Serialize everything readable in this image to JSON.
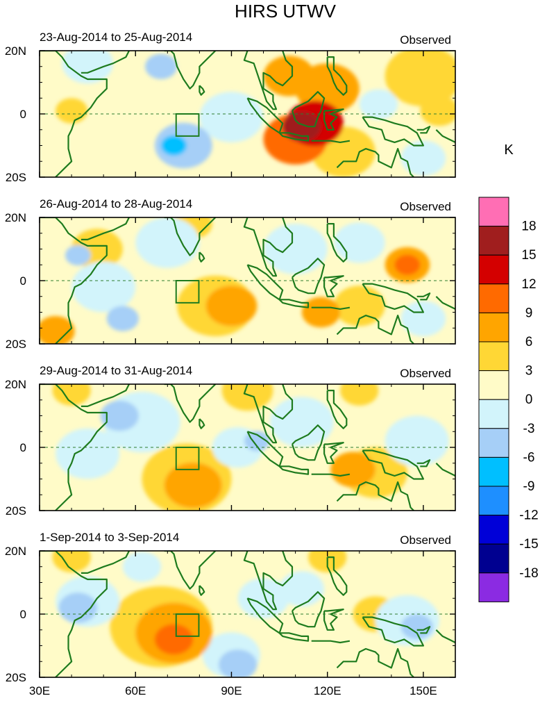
{
  "figure": {
    "title": "HIRS UTWV",
    "units_label": "K",
    "panel_tag": "Observed"
  },
  "map": {
    "lon_range": [
      30,
      160
    ],
    "lat_range": [
      -20,
      20
    ],
    "lon_ticks": [
      30,
      60,
      90,
      120,
      150
    ],
    "lon_tick_labels": [
      "30E",
      "60E",
      "90E",
      "120E",
      "150E"
    ],
    "lat_ticks": [
      20,
      0,
      -20
    ],
    "lat_tick_labels": [
      "20N",
      "0",
      "20S"
    ],
    "equator_line": "dashed",
    "box_region": {
      "lon": [
        72.7,
        79.8
      ],
      "lat": [
        -7.0,
        0.0
      ]
    }
  },
  "panels": [
    {
      "date_range": "23-Aug-2014 to 25-Aug-2014",
      "features": [
        {
          "lon": 112,
          "lat": -4,
          "value": 15,
          "radius": 6
        },
        {
          "lon": 116,
          "lat": -3,
          "value": 12,
          "radius": 9
        },
        {
          "lon": 120,
          "lat": 8,
          "value": 6,
          "radius": 10
        },
        {
          "lon": 108,
          "lat": 12,
          "value": 6,
          "radius": 8
        },
        {
          "lon": 110,
          "lat": -8,
          "value": 9,
          "radius": 10
        },
        {
          "lon": 125,
          "lat": -12,
          "value": 3,
          "radius": 10
        },
        {
          "lon": 150,
          "lat": 12,
          "value": 3,
          "radius": 12
        },
        {
          "lon": 155,
          "lat": 1,
          "value": 3,
          "radius": 6
        },
        {
          "lon": 40,
          "lat": 1,
          "value": 3,
          "radius": 5
        },
        {
          "lon": 75,
          "lat": -10,
          "value": -6,
          "radius": 9
        },
        {
          "lon": 72,
          "lat": -10,
          "value": -9,
          "radius": 4
        },
        {
          "lon": 90,
          "lat": -1,
          "value": -3,
          "radius": 10
        },
        {
          "lon": 68,
          "lat": 15,
          "value": -6,
          "radius": 5
        },
        {
          "lon": 45,
          "lat": 16,
          "value": -3,
          "radius": 8
        },
        {
          "lon": 136,
          "lat": 3,
          "value": -3,
          "radius": 6
        },
        {
          "lon": 150,
          "lat": -14,
          "value": -3,
          "radius": 7
        }
      ]
    },
    {
      "date_range": "26-Aug-2014 to 28-Aug-2014",
      "features": [
        {
          "lon": 90,
          "lat": -8,
          "value": 6,
          "radius": 8
        },
        {
          "lon": 85,
          "lat": -8,
          "value": 3,
          "radius": 12
        },
        {
          "lon": 118,
          "lat": -10,
          "value": 6,
          "radius": 6
        },
        {
          "lon": 130,
          "lat": -8,
          "value": 3,
          "radius": 8
        },
        {
          "lon": 145,
          "lat": 5,
          "value": 9,
          "radius": 4
        },
        {
          "lon": 145,
          "lat": 5,
          "value": 6,
          "radius": 7
        },
        {
          "lon": 35,
          "lat": -16,
          "value": 6,
          "radius": 6
        },
        {
          "lon": 48,
          "lat": 10,
          "value": 3,
          "radius": 8
        },
        {
          "lon": 78,
          "lat": 18,
          "value": 3,
          "radius": 6
        },
        {
          "lon": 70,
          "lat": 12,
          "value": -3,
          "radius": 10
        },
        {
          "lon": 50,
          "lat": -2,
          "value": -3,
          "radius": 10
        },
        {
          "lon": 56,
          "lat": -12,
          "value": -6,
          "radius": 5
        },
        {
          "lon": 110,
          "lat": 10,
          "value": -3,
          "radius": 10
        },
        {
          "lon": 130,
          "lat": 12,
          "value": -3,
          "radius": 8
        },
        {
          "lon": 150,
          "lat": -12,
          "value": -3,
          "radius": 7
        },
        {
          "lon": 42,
          "lat": 8,
          "value": -6,
          "radius": 4
        }
      ]
    },
    {
      "date_range": "29-Aug-2014 to 31-Aug-2014",
      "features": [
        {
          "lon": 78,
          "lat": -12,
          "value": 6,
          "radius": 9
        },
        {
          "lon": 76,
          "lat": -10,
          "value": 3,
          "radius": 14
        },
        {
          "lon": 128,
          "lat": -7,
          "value": 6,
          "radius": 7
        },
        {
          "lon": 135,
          "lat": -8,
          "value": 3,
          "radius": 10
        },
        {
          "lon": 130,
          "lat": 18,
          "value": 3,
          "radius": 6
        },
        {
          "lon": 95,
          "lat": 18,
          "value": 3,
          "radius": 8
        },
        {
          "lon": 40,
          "lat": 18,
          "value": 3,
          "radius": 6
        },
        {
          "lon": 55,
          "lat": 10,
          "value": -6,
          "radius": 6
        },
        {
          "lon": 62,
          "lat": 8,
          "value": -3,
          "radius": 12
        },
        {
          "lon": 45,
          "lat": -2,
          "value": -3,
          "radius": 10
        },
        {
          "lon": 112,
          "lat": 8,
          "value": -3,
          "radius": 10
        },
        {
          "lon": 148,
          "lat": 2,
          "value": -3,
          "radius": 10
        },
        {
          "lon": 98,
          "lat": 2,
          "value": -6,
          "radius": 4
        },
        {
          "lon": 92,
          "lat": 0,
          "value": -3,
          "radius": 8
        }
      ]
    },
    {
      "date_range": "1-Sep-2014 to 3-Sep-2014",
      "features": [
        {
          "lon": 72,
          "lat": -8,
          "value": 9,
          "radius": 6
        },
        {
          "lon": 72,
          "lat": -6,
          "value": 6,
          "radius": 12
        },
        {
          "lon": 68,
          "lat": -4,
          "value": 3,
          "radius": 16
        },
        {
          "lon": 40,
          "lat": 18,
          "value": 3,
          "radius": 6
        },
        {
          "lon": 120,
          "lat": 18,
          "value": 3,
          "radius": 6
        },
        {
          "lon": 135,
          "lat": 0,
          "value": 3,
          "radius": 7
        },
        {
          "lon": 148,
          "lat": -4,
          "value": -6,
          "radius": 5
        },
        {
          "lon": 145,
          "lat": -2,
          "value": -3,
          "radius": 10
        },
        {
          "lon": 92,
          "lat": -16,
          "value": -6,
          "radius": 6
        },
        {
          "lon": 90,
          "lat": -13,
          "value": -3,
          "radius": 9
        },
        {
          "lon": 42,
          "lat": 2,
          "value": -6,
          "radius": 6
        },
        {
          "lon": 45,
          "lat": 4,
          "value": -3,
          "radius": 10
        },
        {
          "lon": 100,
          "lat": 5,
          "value": -3,
          "radius": 8
        },
        {
          "lon": 112,
          "lat": 8,
          "value": -3,
          "radius": 7
        },
        {
          "lon": 62,
          "lat": 15,
          "value": -3,
          "radius": 6
        }
      ]
    }
  ],
  "colorbar": {
    "labels": [
      "18",
      "15",
      "12",
      "9",
      "6",
      "3",
      "0",
      "-3",
      "-6",
      "-9",
      "-12",
      "-15",
      "-18"
    ],
    "colors": [
      "#ff6eb4",
      "#a01e1e",
      "#d40000",
      "#ff6a00",
      "#ffa500",
      "#ffd735",
      "#fffbc8",
      "#d2f4fb",
      "#a6cff7",
      "#00bfff",
      "#1e8fff",
      "#0000d8",
      "#000090",
      "#8b2be2"
    ]
  },
  "coastlines": [
    {
      "name": "africa-east",
      "points": [
        [
          30,
          20
        ],
        [
          35,
          20
        ],
        [
          37,
          18
        ],
        [
          39,
          15
        ],
        [
          43,
          12
        ],
        [
          45,
          11
        ],
        [
          51,
          11
        ],
        [
          51,
          8
        ],
        [
          48,
          5
        ],
        [
          46,
          2
        ],
        [
          43,
          -1
        ],
        [
          41,
          -2
        ],
        [
          40,
          -5
        ],
        [
          39,
          -7
        ],
        [
          39,
          -11
        ],
        [
          40,
          -15
        ],
        [
          38,
          -17
        ],
        [
          35,
          -20
        ]
      ]
    },
    {
      "name": "arabia",
      "points": [
        [
          43,
          13
        ],
        [
          45,
          13
        ],
        [
          50,
          15
        ],
        [
          53,
          16
        ],
        [
          57,
          18
        ],
        [
          58,
          20
        ]
      ]
    },
    {
      "name": "india",
      "points": [
        [
          69,
          20
        ],
        [
          71,
          20
        ],
        [
          72,
          19
        ],
        [
          73,
          15
        ],
        [
          75,
          11
        ],
        [
          77,
          8
        ],
        [
          78,
          9
        ],
        [
          80,
          13
        ],
        [
          80,
          15
        ],
        [
          82,
          17
        ],
        [
          85,
          20
        ]
      ]
    },
    {
      "name": "sri-lanka",
      "points": [
        [
          80,
          9
        ],
        [
          81,
          8
        ],
        [
          81.5,
          7
        ],
        [
          80.5,
          6
        ],
        [
          80,
          7
        ],
        [
          80,
          9
        ]
      ]
    },
    {
      "name": "indochina",
      "points": [
        [
          95,
          20
        ],
        [
          94,
          17
        ],
        [
          97,
          16
        ],
        [
          98,
          13
        ],
        [
          99,
          10
        ],
        [
          100,
          7
        ],
        [
          101,
          4
        ],
        [
          103,
          1.5
        ],
        [
          104,
          1.5
        ],
        [
          103,
          4
        ],
        [
          103,
          6
        ],
        [
          100,
          8
        ],
        [
          100,
          13
        ],
        [
          102,
          12
        ],
        [
          104,
          10
        ],
        [
          106,
          9
        ],
        [
          109,
          12
        ],
        [
          109,
          15
        ],
        [
          107,
          17
        ],
        [
          106,
          20
        ]
      ]
    },
    {
      "name": "sumatra",
      "points": [
        [
          95,
          5
        ],
        [
          98,
          4
        ],
        [
          101,
          2
        ],
        [
          104,
          -1
        ],
        [
          106,
          -3
        ],
        [
          105,
          -6
        ],
        [
          102,
          -4
        ],
        [
          99,
          -1
        ],
        [
          96,
          3
        ],
        [
          95,
          5
        ]
      ]
    },
    {
      "name": "java",
      "points": [
        [
          105,
          -6
        ],
        [
          108,
          -6
        ],
        [
          112,
          -7
        ],
        [
          114,
          -7
        ],
        [
          114,
          -8.5
        ],
        [
          110,
          -8
        ],
        [
          106,
          -7
        ],
        [
          105,
          -6
        ]
      ]
    },
    {
      "name": "borneo",
      "points": [
        [
          109,
          1
        ],
        [
          110,
          2
        ],
        [
          114,
          4
        ],
        [
          116,
          6
        ],
        [
          117,
          7
        ],
        [
          119,
          5
        ],
        [
          118,
          1
        ],
        [
          117,
          -1
        ],
        [
          116,
          -4
        ],
        [
          114,
          -4
        ],
        [
          111,
          -3
        ],
        [
          110,
          -2
        ],
        [
          109,
          1
        ]
      ]
    },
    {
      "name": "sulawesi",
      "points": [
        [
          119,
          1
        ],
        [
          120,
          1
        ],
        [
          125,
          1.5
        ],
        [
          121,
          0
        ],
        [
          123,
          -1
        ],
        [
          121,
          -3
        ],
        [
          122,
          -5
        ],
        [
          120,
          -5
        ],
        [
          119,
          -2
        ],
        [
          119,
          1
        ]
      ]
    },
    {
      "name": "philippines",
      "points": [
        [
          120,
          18
        ],
        [
          122,
          18
        ],
        [
          122,
          14
        ],
        [
          124,
          12
        ],
        [
          126,
          9
        ],
        [
          126,
          7
        ],
        [
          125,
          6
        ],
        [
          123,
          8
        ],
        [
          122,
          10
        ],
        [
          121,
          13
        ],
        [
          120,
          15
        ],
        [
          120,
          18
        ]
      ]
    },
    {
      "name": "new-guinea",
      "points": [
        [
          131,
          -1
        ],
        [
          134,
          -1
        ],
        [
          138,
          -2
        ],
        [
          141,
          -3
        ],
        [
          145,
          -4
        ],
        [
          148,
          -6
        ],
        [
          150,
          -10
        ],
        [
          147,
          -10
        ],
        [
          144,
          -8
        ],
        [
          141,
          -9
        ],
        [
          138,
          -8
        ],
        [
          137,
          -5
        ],
        [
          133,
          -4
        ],
        [
          131,
          -1
        ]
      ]
    },
    {
      "name": "australia-north",
      "points": [
        [
          123,
          -17
        ],
        [
          125,
          -15
        ],
        [
          129,
          -15
        ],
        [
          130,
          -12
        ],
        [
          132,
          -11
        ],
        [
          135,
          -12
        ],
        [
          136,
          -13
        ],
        [
          136,
          -15
        ],
        [
          140,
          -17
        ],
        [
          142,
          -11
        ],
        [
          143,
          -14
        ],
        [
          145,
          -15
        ],
        [
          146,
          -19
        ],
        [
          147,
          -20
        ]
      ]
    },
    {
      "name": "timor-chain",
      "points": [
        [
          115,
          -8.5
        ],
        [
          118,
          -8.5
        ],
        [
          121,
          -8.5
        ],
        [
          124,
          -9
        ],
        [
          127,
          -8.5
        ]
      ]
    },
    {
      "name": "solomons",
      "points": [
        [
          154,
          -5
        ],
        [
          156,
          -7
        ],
        [
          158,
          -8
        ],
        [
          160,
          -9
        ]
      ]
    },
    {
      "name": "new-britain",
      "points": [
        [
          148,
          -5
        ],
        [
          150,
          -5
        ],
        [
          152,
          -4
        ],
        [
          151,
          -6
        ],
        [
          149,
          -6
        ]
      ]
    }
  ]
}
